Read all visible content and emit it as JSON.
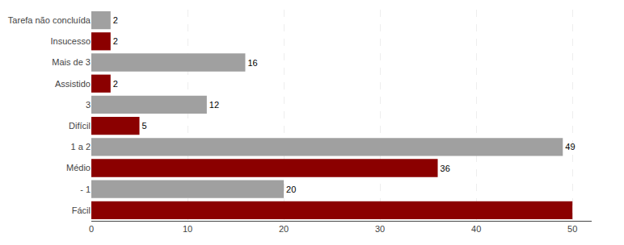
{
  "chart_data": {
    "type": "bar",
    "orientation": "horizontal",
    "categories": [
      "Tarefa não concluída",
      "Insucesso",
      "Mais de 3",
      "Assistido",
      "3",
      "Difícil",
      "1 a 2",
      "Médio",
      "- 1",
      "Fácil"
    ],
    "values": [
      2,
      2,
      16,
      2,
      12,
      5,
      49,
      36,
      20,
      50
    ],
    "value_labels": [
      "2",
      "2",
      "16",
      "2",
      "12",
      "5",
      "49",
      "36",
      "20",
      null
    ],
    "colors": [
      "#a0a0a0",
      "#8B0000",
      "#a0a0a0",
      "#8B0000",
      "#a0a0a0",
      "#8B0000",
      "#a0a0a0",
      "#8B0000",
      "#a0a0a0",
      "#8B0000"
    ],
    "data_labels": true,
    "xlim": [
      0,
      52
    ],
    "xticks": [
      0,
      10,
      20,
      30,
      40,
      50
    ],
    "grid": true
  }
}
